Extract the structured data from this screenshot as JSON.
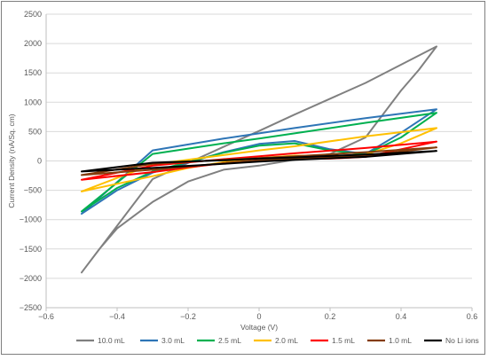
{
  "chart_data": {
    "type": "line",
    "title": "",
    "xlabel": "Voltage (V)",
    "ylabel": "Current Density (nA/Sq. cm)",
    "xlim": [
      -0.6,
      0.6
    ],
    "ylim": [
      -2500,
      2500
    ],
    "x_ticks": [
      "−0.6",
      "−0.4",
      "−0.2",
      "0",
      "0.2",
      "0.4",
      "0.6"
    ],
    "y_ticks": [
      "2500",
      "2000",
      "1500",
      "1000",
      "500",
      "0",
      "−500",
      "−1000",
      "−1500",
      "−2000",
      "−2500"
    ],
    "grid": "horizontal",
    "legend_position": "bottom",
    "series": [
      {
        "name": "10.0 mL",
        "color": "#808080",
        "x": [
          -0.5,
          -0.45,
          -0.4,
          -0.3,
          -0.2,
          -0.1,
          0.0,
          0.1,
          0.2,
          0.3,
          0.4,
          0.45,
          0.5,
          0.3,
          0.1,
          0.0,
          -0.1,
          -0.3,
          -0.5
        ],
        "y": [
          -1900,
          -1500,
          -1150,
          -700,
          -350,
          -150,
          -80,
          20,
          120,
          400,
          1200,
          1550,
          1950,
          1330,
          790,
          510,
          240,
          -310,
          -1900
        ]
      },
      {
        "name": "3.0 mL",
        "color": "#2e75b6",
        "x": [
          -0.5,
          -0.4,
          -0.3,
          -0.2,
          -0.1,
          0.0,
          0.1,
          0.2,
          0.3,
          0.4,
          0.5,
          0.3,
          0.1,
          0.0,
          -0.1,
          -0.3,
          -0.5
        ],
        "y": [
          -900,
          -500,
          -200,
          -30,
          150,
          290,
          340,
          200,
          120,
          480,
          880,
          730,
          560,
          470,
          380,
          180,
          -900
        ]
      },
      {
        "name": "2.5 mL",
        "color": "#00b050",
        "x": [
          -0.5,
          -0.4,
          -0.3,
          -0.2,
          -0.1,
          0.0,
          0.1,
          0.2,
          0.3,
          0.4,
          0.5,
          0.3,
          0.1,
          0.0,
          -0.1,
          -0.3,
          -0.5
        ],
        "y": [
          -860,
          -460,
          -180,
          -20,
          140,
          260,
          300,
          180,
          110,
          400,
          820,
          650,
          470,
          380,
          300,
          120,
          -860
        ]
      },
      {
        "name": "2.0 mL",
        "color": "#ffc000",
        "x": [
          -0.5,
          -0.3,
          -0.2,
          -0.1,
          0.0,
          0.1,
          0.2,
          0.3,
          0.4,
          0.5,
          0.3,
          0.1,
          0.0,
          -0.1,
          -0.3,
          -0.5
        ],
        "y": [
          -520,
          -260,
          -120,
          -20,
          50,
          90,
          80,
          110,
          300,
          560,
          420,
          250,
          180,
          100,
          -60,
          -520
        ]
      },
      {
        "name": "1.5 mL",
        "color": "#ff0000",
        "x": [
          -0.5,
          -0.3,
          -0.2,
          -0.1,
          0.0,
          0.1,
          0.2,
          0.3,
          0.4,
          0.5,
          0.3,
          0.1,
          0.0,
          -0.1,
          -0.3,
          -0.5
        ],
        "y": [
          -320,
          -190,
          -110,
          -40,
          10,
          40,
          40,
          70,
          200,
          330,
          220,
          130,
          80,
          30,
          -80,
          -320
        ]
      },
      {
        "name": "1.0 mL",
        "color": "#843c0c",
        "x": [
          -0.5,
          -0.3,
          -0.1,
          0.0,
          0.1,
          0.3,
          0.5,
          0.3,
          0.1,
          0.0,
          -0.1,
          -0.3,
          -0.5
        ],
        "y": [
          -240,
          -150,
          -40,
          10,
          40,
          90,
          230,
          150,
          80,
          50,
          20,
          -50,
          -240
        ]
      },
      {
        "name": "No Li ions",
        "color": "#000000",
        "x": [
          -0.5,
          -0.3,
          -0.1,
          0.0,
          0.1,
          0.3,
          0.5,
          0.3,
          0.1,
          0.0,
          -0.1,
          -0.3,
          -0.5
        ],
        "y": [
          -180,
          -120,
          -50,
          -10,
          20,
          70,
          170,
          110,
          60,
          40,
          10,
          -30,
          -180
        ]
      }
    ]
  }
}
